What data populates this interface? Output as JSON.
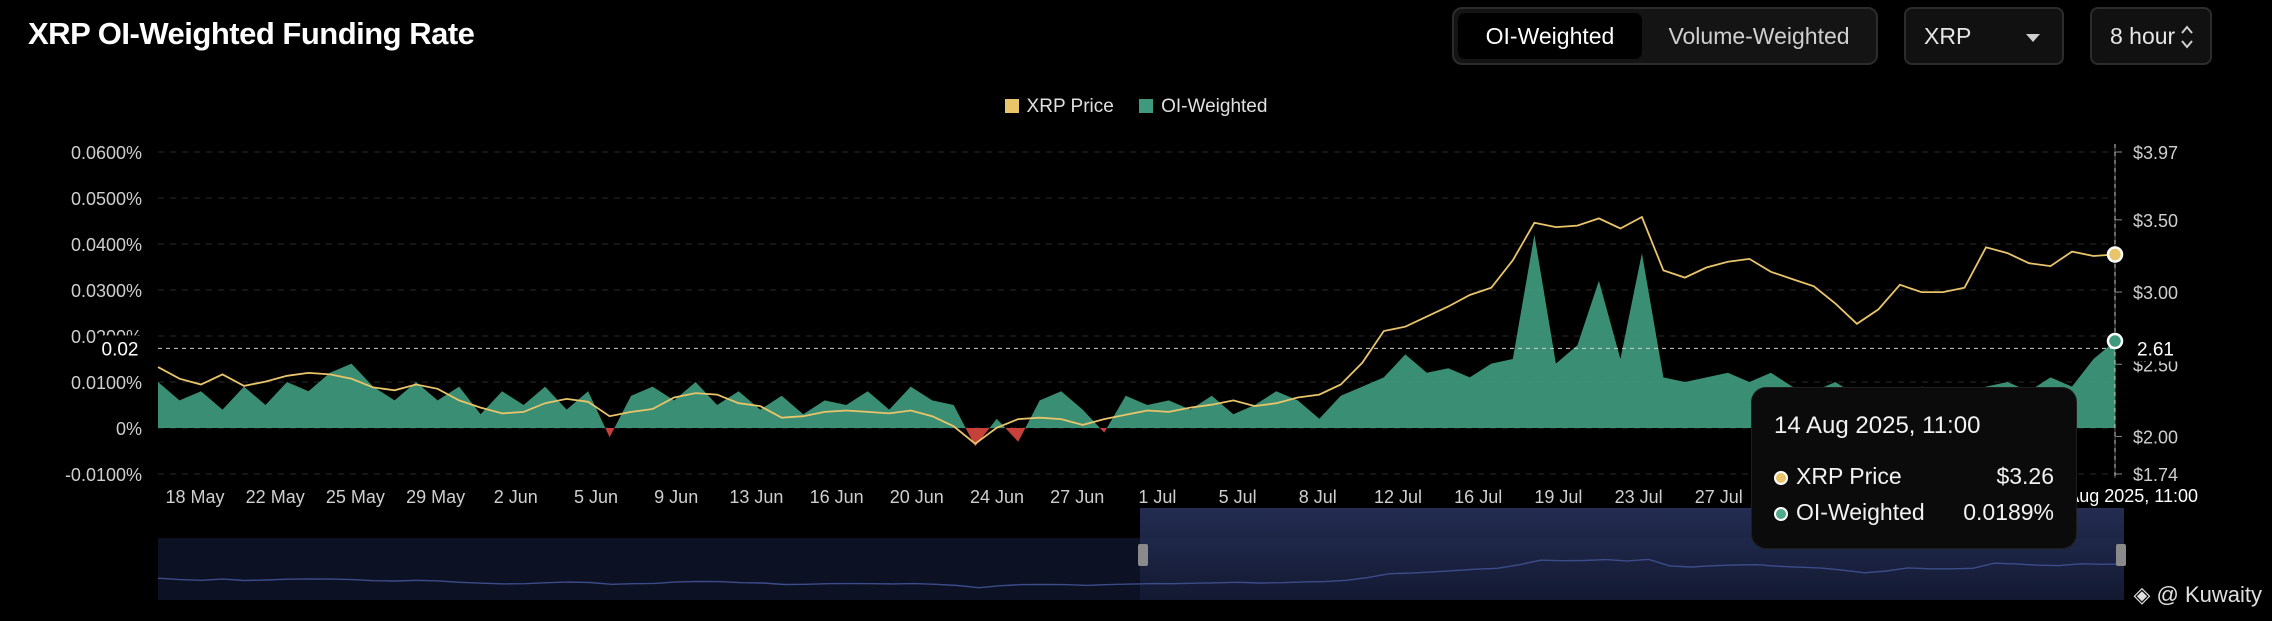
{
  "page": {
    "title": "XRP OI-Weighted Funding Rate",
    "weighting_tabs": [
      {
        "label": "OI-Weighted",
        "active": true
      },
      {
        "label": "Volume-Weighted",
        "active": false
      }
    ],
    "coin_select": {
      "value": "XRP"
    },
    "interval_select": {
      "value": "8 hour"
    },
    "watermark": "@ Kuwaity"
  },
  "tooltip": {
    "date": "14 Aug 2025, 11:00",
    "rows": [
      {
        "label": "XRP Price",
        "value": "$3.26",
        "color": "#e8c46a"
      },
      {
        "label": "OI-Weighted",
        "value": "0.0189%",
        "color": "#4fa98a"
      }
    ]
  },
  "crosshair": {
    "left_value": "0.02",
    "right_value": "2.61",
    "x_label": "14 Aug 2025, 11:00"
  },
  "chart_data": {
    "type": "area",
    "legend": [
      {
        "name": "XRP Price",
        "color": "#e8c46a"
      },
      {
        "name": "OI-Weighted",
        "color": "#3f9a7d"
      }
    ],
    "legend_position": "top-center",
    "grid": true,
    "x_tick_labels": [
      "18 May",
      "22 May",
      "25 May",
      "29 May",
      "2 Jun",
      "5 Jun",
      "9 Jun",
      "13 Jun",
      "16 Jun",
      "20 Jun",
      "24 Jun",
      "27 Jun",
      "1 Jul",
      "5 Jul",
      "8 Jul",
      "12 Jul",
      "16 Jul",
      "19 Jul",
      "23 Jul",
      "27 Jul"
    ],
    "y_left": {
      "label": "",
      "ticks": [
        "0.0600%",
        "0.0500%",
        "0.0400%",
        "0.0300%",
        "0.0200%",
        "0.0100%",
        "0%",
        "-0.0100%"
      ],
      "range": [
        -0.01,
        0.06
      ],
      "unit": "%"
    },
    "y_right": {
      "label": "",
      "ticks": [
        "$3.97",
        "$3.50",
        "$3.00",
        "$2.50",
        "$2.00",
        "$1.74"
      ],
      "range": [
        1.74,
        3.97
      ],
      "unit": "$"
    },
    "x_range": [
      "2025-05-15",
      "2025-08-14"
    ],
    "series": [
      {
        "name": "OI-Weighted",
        "axis": "left",
        "unit": "%",
        "points": [
          [
            "2025-05-15",
            0.01
          ],
          [
            "2025-05-16",
            0.006
          ],
          [
            "2025-05-17",
            0.008
          ],
          [
            "2025-05-18",
            0.004
          ],
          [
            "2025-05-19",
            0.009
          ],
          [
            "2025-05-20",
            0.005
          ],
          [
            "2025-05-21",
            0.01
          ],
          [
            "2025-05-22",
            0.008
          ],
          [
            "2025-05-23",
            0.012
          ],
          [
            "2025-05-24",
            0.014
          ],
          [
            "2025-05-25",
            0.009
          ],
          [
            "2025-05-26",
            0.006
          ],
          [
            "2025-05-27",
            0.01
          ],
          [
            "2025-05-28",
            0.006
          ],
          [
            "2025-05-29",
            0.009
          ],
          [
            "2025-05-30",
            0.003
          ],
          [
            "2025-05-31",
            0.008
          ],
          [
            "2025-06-01",
            0.005
          ],
          [
            "2025-06-02",
            0.009
          ],
          [
            "2025-06-03",
            0.004
          ],
          [
            "2025-06-04",
            0.008
          ],
          [
            "2025-06-05",
            -0.002
          ],
          [
            "2025-06-06",
            0.007
          ],
          [
            "2025-06-07",
            0.009
          ],
          [
            "2025-06-08",
            0.006
          ],
          [
            "2025-06-09",
            0.01
          ],
          [
            "2025-06-10",
            0.005
          ],
          [
            "2025-06-11",
            0.008
          ],
          [
            "2025-06-12",
            0.004
          ],
          [
            "2025-06-13",
            0.007
          ],
          [
            "2025-06-14",
            0.003
          ],
          [
            "2025-06-15",
            0.006
          ],
          [
            "2025-06-16",
            0.005
          ],
          [
            "2025-06-17",
            0.008
          ],
          [
            "2025-06-18",
            0.004
          ],
          [
            "2025-06-19",
            0.009
          ],
          [
            "2025-06-20",
            0.006
          ],
          [
            "2025-06-21",
            0.005
          ],
          [
            "2025-06-22",
            -0.004
          ],
          [
            "2025-06-23",
            0.002
          ],
          [
            "2025-06-24",
            -0.003
          ],
          [
            "2025-06-25",
            0.006
          ],
          [
            "2025-06-26",
            0.008
          ],
          [
            "2025-06-27",
            0.004
          ],
          [
            "2025-06-28",
            -0.001
          ],
          [
            "2025-06-29",
            0.007
          ],
          [
            "2025-06-30",
            0.005
          ],
          [
            "2025-07-01",
            0.006
          ],
          [
            "2025-07-02",
            0.004
          ],
          [
            "2025-07-03",
            0.007
          ],
          [
            "2025-07-04",
            0.003
          ],
          [
            "2025-07-05",
            0.005
          ],
          [
            "2025-07-06",
            0.008
          ],
          [
            "2025-07-07",
            0.006
          ],
          [
            "2025-07-08",
            0.002
          ],
          [
            "2025-07-09",
            0.007
          ],
          [
            "2025-07-10",
            0.009
          ],
          [
            "2025-07-11",
            0.011
          ],
          [
            "2025-07-12",
            0.016
          ],
          [
            "2025-07-13",
            0.012
          ],
          [
            "2025-07-14",
            0.013
          ],
          [
            "2025-07-15",
            0.011
          ],
          [
            "2025-07-16",
            0.014
          ],
          [
            "2025-07-17",
            0.015
          ],
          [
            "2025-07-18",
            0.042
          ],
          [
            "2025-07-19",
            0.014
          ],
          [
            "2025-07-20",
            0.018
          ],
          [
            "2025-07-21",
            0.032
          ],
          [
            "2025-07-22",
            0.015
          ],
          [
            "2025-07-23",
            0.038
          ],
          [
            "2025-07-24",
            0.011
          ],
          [
            "2025-07-25",
            0.01
          ],
          [
            "2025-07-26",
            0.011
          ],
          [
            "2025-07-27",
            0.012
          ],
          [
            "2025-07-28",
            0.01
          ],
          [
            "2025-07-29",
            0.012
          ],
          [
            "2025-07-30",
            0.009
          ],
          [
            "2025-07-31",
            0.008
          ],
          [
            "2025-08-01",
            0.01
          ],
          [
            "2025-08-02",
            0.007
          ],
          [
            "2025-08-03",
            0.008
          ],
          [
            "2025-08-04",
            0.006
          ],
          [
            "2025-08-05",
            0.009
          ],
          [
            "2025-08-06",
            0.008
          ],
          [
            "2025-08-07",
            0.007
          ],
          [
            "2025-08-08",
            0.009
          ],
          [
            "2025-08-09",
            0.01
          ],
          [
            "2025-08-10",
            0.008
          ],
          [
            "2025-08-11",
            0.011
          ],
          [
            "2025-08-12",
            0.009
          ],
          [
            "2025-08-13",
            0.015
          ],
          [
            "2025-08-14",
            0.0189
          ]
        ]
      },
      {
        "name": "XRP Price",
        "axis": "right",
        "unit": "$",
        "points": [
          [
            "2025-05-15",
            2.48
          ],
          [
            "2025-05-16",
            2.4
          ],
          [
            "2025-05-17",
            2.36
          ],
          [
            "2025-05-18",
            2.43
          ],
          [
            "2025-05-19",
            2.35
          ],
          [
            "2025-05-20",
            2.38
          ],
          [
            "2025-05-21",
            2.42
          ],
          [
            "2025-05-22",
            2.44
          ],
          [
            "2025-05-23",
            2.43
          ],
          [
            "2025-05-24",
            2.4
          ],
          [
            "2025-05-25",
            2.34
          ],
          [
            "2025-05-26",
            2.32
          ],
          [
            "2025-05-27",
            2.36
          ],
          [
            "2025-05-28",
            2.33
          ],
          [
            "2025-05-29",
            2.25
          ],
          [
            "2025-05-30",
            2.2
          ],
          [
            "2025-05-31",
            2.16
          ],
          [
            "2025-06-01",
            2.17
          ],
          [
            "2025-06-02",
            2.23
          ],
          [
            "2025-06-03",
            2.26
          ],
          [
            "2025-06-04",
            2.24
          ],
          [
            "2025-06-05",
            2.14
          ],
          [
            "2025-06-06",
            2.17
          ],
          [
            "2025-06-07",
            2.19
          ],
          [
            "2025-06-08",
            2.27
          ],
          [
            "2025-06-09",
            2.3
          ],
          [
            "2025-06-10",
            2.29
          ],
          [
            "2025-06-11",
            2.23
          ],
          [
            "2025-06-12",
            2.21
          ],
          [
            "2025-06-13",
            2.13
          ],
          [
            "2025-06-14",
            2.14
          ],
          [
            "2025-06-15",
            2.17
          ],
          [
            "2025-06-16",
            2.18
          ],
          [
            "2025-06-17",
            2.17
          ],
          [
            "2025-06-18",
            2.16
          ],
          [
            "2025-06-19",
            2.18
          ],
          [
            "2025-06-20",
            2.14
          ],
          [
            "2025-06-21",
            2.07
          ],
          [
            "2025-06-22",
            1.95
          ],
          [
            "2025-06-23",
            2.06
          ],
          [
            "2025-06-24",
            2.12
          ],
          [
            "2025-06-25",
            2.13
          ],
          [
            "2025-06-26",
            2.12
          ],
          [
            "2025-06-27",
            2.08
          ],
          [
            "2025-06-28",
            2.12
          ],
          [
            "2025-06-29",
            2.15
          ],
          [
            "2025-06-30",
            2.18
          ],
          [
            "2025-07-01",
            2.17
          ],
          [
            "2025-07-02",
            2.2
          ],
          [
            "2025-07-03",
            2.22
          ],
          [
            "2025-07-04",
            2.25
          ],
          [
            "2025-07-05",
            2.21
          ],
          [
            "2025-07-06",
            2.23
          ],
          [
            "2025-07-07",
            2.27
          ],
          [
            "2025-07-08",
            2.29
          ],
          [
            "2025-07-09",
            2.36
          ],
          [
            "2025-07-10",
            2.51
          ],
          [
            "2025-07-11",
            2.73
          ],
          [
            "2025-07-12",
            2.76
          ],
          [
            "2025-07-13",
            2.83
          ],
          [
            "2025-07-14",
            2.9
          ],
          [
            "2025-07-15",
            2.98
          ],
          [
            "2025-07-16",
            3.03
          ],
          [
            "2025-07-17",
            3.22
          ],
          [
            "2025-07-18",
            3.48
          ],
          [
            "2025-07-19",
            3.45
          ],
          [
            "2025-07-20",
            3.46
          ],
          [
            "2025-07-21",
            3.51
          ],
          [
            "2025-07-22",
            3.44
          ],
          [
            "2025-07-23",
            3.52
          ],
          [
            "2025-07-24",
            3.15
          ],
          [
            "2025-07-25",
            3.1
          ],
          [
            "2025-07-26",
            3.17
          ],
          [
            "2025-07-27",
            3.21
          ],
          [
            "2025-07-28",
            3.23
          ],
          [
            "2025-07-29",
            3.14
          ],
          [
            "2025-07-30",
            3.09
          ],
          [
            "2025-07-31",
            3.04
          ],
          [
            "2025-08-01",
            2.92
          ],
          [
            "2025-08-02",
            2.78
          ],
          [
            "2025-08-03",
            2.88
          ],
          [
            "2025-08-04",
            3.05
          ],
          [
            "2025-08-05",
            3.0
          ],
          [
            "2025-08-06",
            3.0
          ],
          [
            "2025-08-07",
            3.03
          ],
          [
            "2025-08-08",
            3.31
          ],
          [
            "2025-08-09",
            3.27
          ],
          [
            "2025-08-10",
            3.2
          ],
          [
            "2025-08-11",
            3.18
          ],
          [
            "2025-08-12",
            3.28
          ],
          [
            "2025-08-13",
            3.25
          ],
          [
            "2025-08-14",
            3.26
          ]
        ]
      }
    ]
  }
}
